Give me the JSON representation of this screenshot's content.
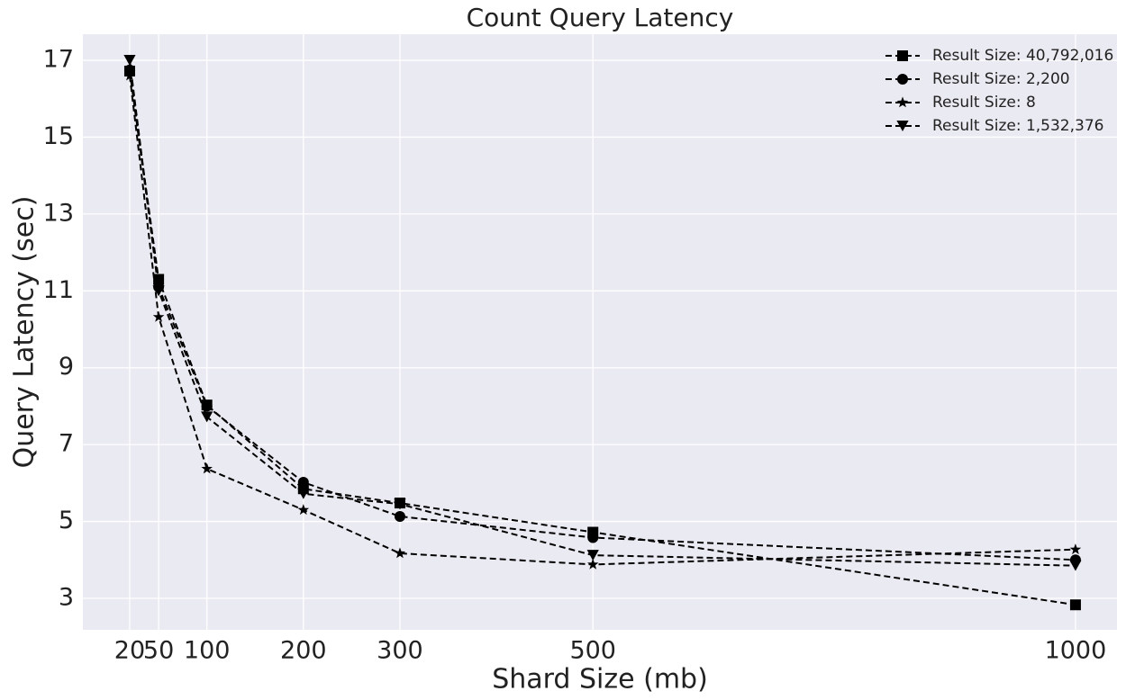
{
  "chart_data": {
    "type": "line",
    "title": "Count Query Latency",
    "x_label": "Shard Size (mb)",
    "y_label": "Query Latency (sec)",
    "x": [
      20,
      50,
      100,
      200,
      300,
      500,
      1000
    ],
    "series": [
      {
        "name": "Result Size: 40,792,016",
        "color": "#000000",
        "marker": "square",
        "values": [
          16.72,
          11.3,
          8.03,
          5.85,
          5.48,
          4.72,
          2.83
        ]
      },
      {
        "name": "Result Size: 2,200",
        "color": "#000000",
        "marker": "circle",
        "values": [
          16.75,
          11.1,
          8.0,
          6.02,
          5.13,
          4.58,
          4.0
        ]
      },
      {
        "name": "Result Size: 8",
        "color": "#000000",
        "marker": "star",
        "values": [
          16.6,
          10.32,
          6.37,
          5.3,
          4.17,
          3.88,
          4.27
        ]
      },
      {
        "name": "Result Size: 1,532,376",
        "color": "#000000",
        "marker": "triangle-down",
        "values": [
          17.0,
          11.0,
          7.72,
          5.72,
          5.45,
          4.12,
          3.85
        ]
      }
    ],
    "xlim": [
      -28.5,
      1043
    ],
    "ylim": [
      2.18,
      17.68
    ],
    "xticks": [
      20,
      50,
      100,
      200,
      300,
      500,
      1000
    ],
    "yticks": [
      3,
      5,
      7,
      9,
      11,
      13,
      15,
      17
    ],
    "grid": true,
    "legend_position": "upper right"
  }
}
